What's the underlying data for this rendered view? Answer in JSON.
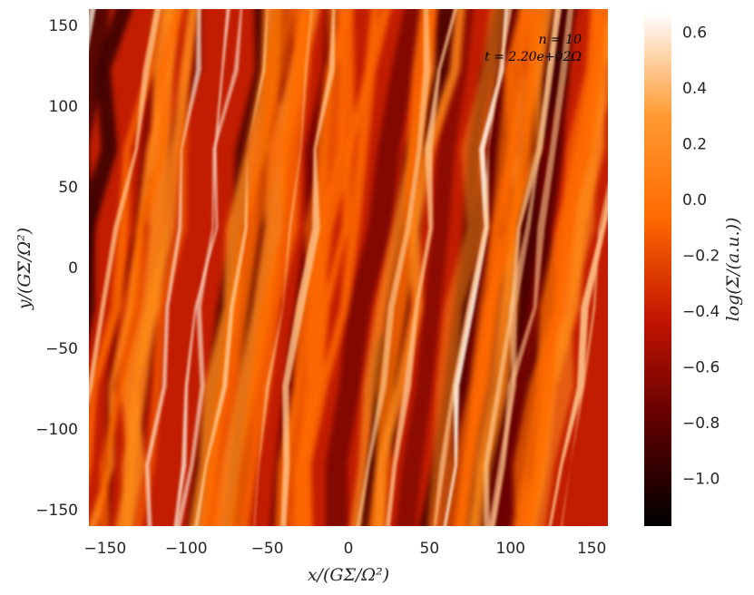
{
  "chart_data": {
    "type": "heatmap",
    "xlabel": "x/(GΣ/Ω²)",
    "ylabel": "y/(GΣ/Ω²)",
    "colorbar_label": "log(Σ/(a.u.))",
    "xlim": [
      -160,
      160
    ],
    "ylim": [
      -160,
      160
    ],
    "x_ticks": [
      -150,
      -100,
      -50,
      0,
      50,
      100,
      150
    ],
    "x_tick_labels": [
      "−150",
      "−100",
      "−50",
      "0",
      "50",
      "100",
      "150"
    ],
    "y_ticks": [
      150,
      100,
      50,
      0,
      -50,
      -100,
      -150
    ],
    "y_tick_labels": [
      "150",
      "100",
      "50",
      "0",
      "−50",
      "−100",
      "−150"
    ],
    "colorbar_range": [
      -1.17,
      0.67
    ],
    "colorbar_ticks": [
      0.6,
      0.4,
      0.2,
      0.0,
      -0.2,
      -0.4,
      -0.6,
      -0.8,
      -1.0
    ],
    "colorbar_tick_labels": [
      "0.6",
      "0.4",
      "0.2",
      "0.0",
      "−0.2",
      "−0.4",
      "−0.6",
      "−0.8",
      "−1.0"
    ],
    "colormap": "gist_heat",
    "colormap_stops": [
      "#000000",
      "#5c0000",
      "#c21400",
      "#ff6a00",
      "#ff9a33",
      "#ffffff"
    ],
    "annotations": [
      "n = 10",
      "t = 2.20e+02Ω"
    ],
    "grid": false
  }
}
